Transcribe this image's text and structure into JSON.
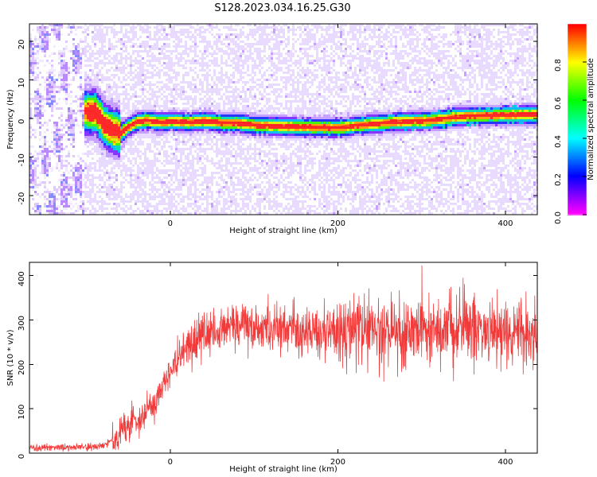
{
  "title": "S128.2023.034.16.25.G30",
  "colors": {
    "snr_line": "#f03030",
    "spectrogram_low": "#d9b7ff",
    "spectrogram_mid": "#2a37ff",
    "spectrogram_high": "#ff2a2a"
  },
  "chart_data": [
    {
      "type": "heatmap",
      "title": "S128.2023.034.16.25.G30",
      "xlabel": "Height of straight line (km)",
      "ylabel": "Frequency (Hz)",
      "xlim": [
        -168,
        438
      ],
      "ylim": [
        -25,
        24.5
      ],
      "x_ticks": [
        0,
        200,
        400
      ],
      "y_ticks": [
        -20,
        -10,
        0,
        10,
        20
      ],
      "colorbar": {
        "label": "Normalized spectral amplitude",
        "ticks": [
          0.0,
          0.2,
          0.4,
          0.6,
          0.8
        ],
        "range": [
          0,
          1
        ]
      },
      "ridge": {
        "x": [
          -105,
          -90,
          -80,
          -70,
          -60,
          -50,
          -40,
          -30,
          -20,
          -10,
          0,
          20,
          40,
          60,
          80,
          100,
          120,
          140,
          160,
          180,
          200,
          220,
          240,
          260,
          280,
          300,
          320,
          340,
          360,
          380,
          400,
          420,
          438
        ],
        "y": [
          2.0,
          1.8,
          -1.5,
          -2.8,
          -3.5,
          -1.8,
          -0.6,
          -0.2,
          -0.6,
          -0.8,
          -0.5,
          -0.8,
          -0.4,
          -0.9,
          -1.0,
          -1.5,
          -1.7,
          -1.9,
          -2.0,
          -2.1,
          -2.2,
          -1.6,
          -1.2,
          -0.8,
          -0.5,
          -0.4,
          0.0,
          0.6,
          0.9,
          1.0,
          1.1,
          1.2,
          1.3
        ]
      }
    },
    {
      "type": "line",
      "xlabel": "Height of straight line (km)",
      "ylabel": "SNR (10 * v/v)",
      "xlim": [
        -168,
        438
      ],
      "ylim": [
        0,
        430
      ],
      "x_ticks": [
        0,
        200,
        400
      ],
      "y_ticks": [
        0,
        100,
        200,
        300,
        400
      ],
      "series": [
        {
          "x": [
            -168,
            -150,
            -130,
            -110,
            -90,
            -80,
            -70,
            -60,
            -50,
            -40,
            -30,
            -20,
            -10,
            0,
            10,
            20,
            30,
            40,
            50,
            60,
            70,
            80,
            90,
            100,
            120,
            140,
            160,
            180,
            200,
            220,
            240,
            260,
            280,
            300,
            320,
            340,
            360,
            380,
            400,
            420,
            438
          ],
          "values": [
            12,
            12,
            13,
            13,
            15,
            18,
            28,
            45,
            60,
            78,
            90,
            110,
            150,
            180,
            210,
            240,
            260,
            268,
            274,
            280,
            282,
            286,
            288,
            286,
            280,
            278,
            272,
            268,
            270,
            272,
            276,
            280,
            278,
            276,
            278,
            282,
            286,
            280,
            270,
            266,
            268
          ]
        }
      ]
    }
  ]
}
